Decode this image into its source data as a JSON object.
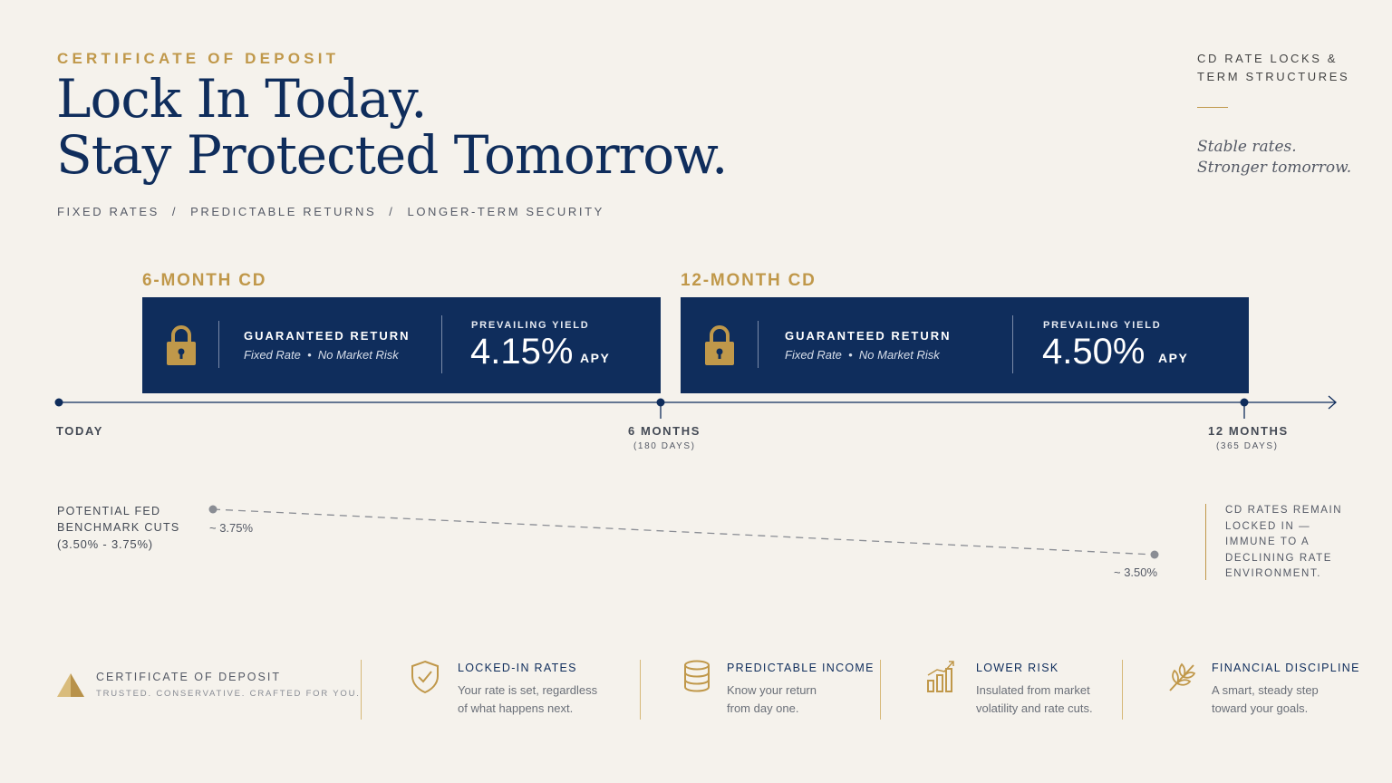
{
  "header": {
    "eyebrow": "CERTIFICATE OF DEPOSIT",
    "headline_line1": "Lock In Today.",
    "headline_line2": "Stay Protected Tomorrow.",
    "tags": [
      "FIXED RATES",
      "PREDICTABLE RETURNS",
      "LONGER-TERM SECURITY"
    ],
    "tag_separator": "/"
  },
  "side": {
    "title_line1": "CD RATE LOCKS &",
    "title_line2": "TERM STRUCTURES",
    "quote_line1": "Stable rates.",
    "quote_line2": "Stronger tomorrow."
  },
  "cds": [
    {
      "label": "6-MONTH CD",
      "guaranteed_title": "GUARANTEED RETURN",
      "guaranteed_sub_a": "Fixed Rate",
      "guaranteed_sub_dot": "•",
      "guaranteed_sub_b": "No Market Risk",
      "yield_title": "PREVAILING YIELD",
      "yield_value": "4.15%",
      "yield_unit": "APY",
      "icon": "lock-icon"
    },
    {
      "label": "12-MONTH CD",
      "guaranteed_title": "GUARANTEED RETURN",
      "guaranteed_sub_a": "Fixed Rate",
      "guaranteed_sub_dot": "•",
      "guaranteed_sub_b": "No Market Risk",
      "yield_title": "PREVAILING YIELD",
      "yield_value": "4.50%",
      "yield_unit": "APY",
      "icon": "lock-icon"
    }
  ],
  "timeline": {
    "start": "TODAY",
    "mid": "6 MONTHS",
    "mid_sub": "(180 DAYS)",
    "end": "12 MONTHS",
    "end_sub": "(365 DAYS)"
  },
  "fed": {
    "label_line1": "POTENTIAL FED",
    "label_line2": "BENCHMARK CUTS",
    "range": "(3.50% - 3.75%)",
    "start_rate": "~ 3.75%",
    "end_rate": "~ 3.50%"
  },
  "locked_note": {
    "line1": "CD RATES REMAIN",
    "line2": "LOCKED IN —",
    "line3": "IMMUNE TO A",
    "line4": "DECLINING RATE",
    "line5": "ENVIRONMENT."
  },
  "footer": {
    "brand_title": "CERTIFICATE OF DEPOSIT",
    "brand_sub": "TRUSTED. CONSERVATIVE. CRAFTED FOR YOU.",
    "features": [
      {
        "title": "LOCKED-IN RATES",
        "desc1": "Your rate is set, regardless",
        "desc2": "of what happens next.",
        "icon": "shield-check-icon"
      },
      {
        "title": "PREDICTABLE INCOME",
        "desc1": "Know your return",
        "desc2": "from day one.",
        "icon": "coin-stack-icon"
      },
      {
        "title": "LOWER RISK",
        "desc1": "Insulated from market",
        "desc2": "volatility and rate cuts.",
        "icon": "bar-chart-icon"
      },
      {
        "title": "FINANCIAL DISCIPLINE",
        "desc1": "A smart, steady step",
        "desc2": "toward your goals.",
        "icon": "leaf-icon"
      }
    ]
  },
  "colors": {
    "navy": "#0f2d5c",
    "gold": "#c0984a",
    "background": "#f5f2ec"
  }
}
